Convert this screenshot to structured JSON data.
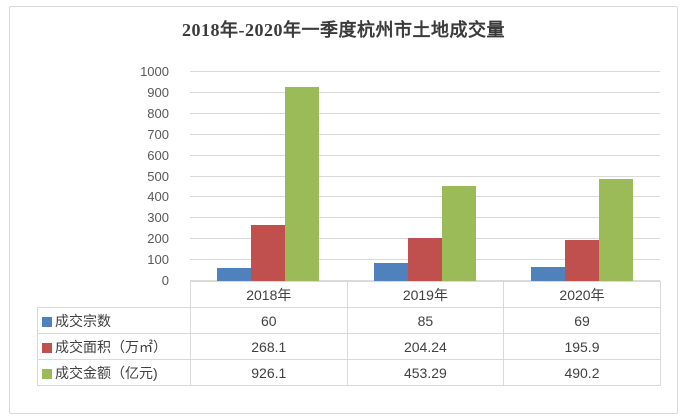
{
  "chart_data": {
    "type": "bar",
    "title": "2018年-2020年一季度杭州市土地成交量",
    "categories": [
      "2018年",
      "2019年",
      "2020年"
    ],
    "series": [
      {
        "name": "成交宗数",
        "color": "#4F81BD",
        "values": [
          60,
          85,
          69
        ]
      },
      {
        "name": "成交面积（万㎡）",
        "color": "#C0504D",
        "values": [
          268.1,
          204.24,
          195.9
        ]
      },
      {
        "name": "成交金额（亿元)",
        "color": "#9BBB59",
        "values": [
          926.1,
          453.29,
          490.2
        ]
      }
    ],
    "ylim": [
      0,
      1000
    ],
    "yticks": [
      0,
      100,
      200,
      300,
      400,
      500,
      600,
      700,
      800,
      900,
      1000
    ],
    "grid": true,
    "legend_position": "data-table-left",
    "colors": {
      "gridline": "#d9d9d9",
      "axis_text": "#595959",
      "table_text": "#404040",
      "border": "#d9d9d9"
    }
  }
}
